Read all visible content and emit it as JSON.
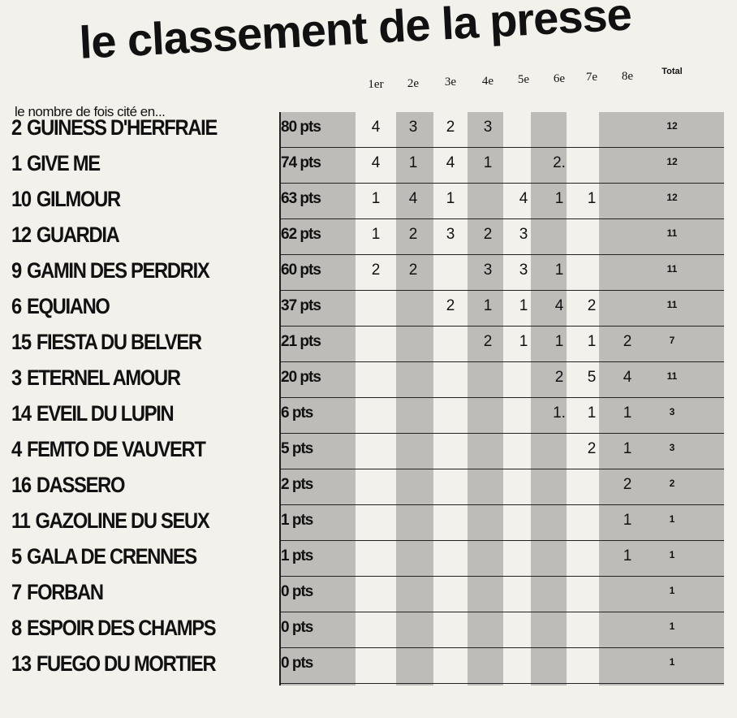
{
  "title": "le classement de la presse",
  "subtitle": "le nombre de fois cité en...",
  "columns": [
    "1er",
    "2e",
    "3e",
    "4e",
    "5e",
    "6e",
    "7e",
    "8e",
    "Total"
  ],
  "rows": [
    {
      "num": "2",
      "name": "GUINESS D'HERFRAIE",
      "pts": "80 pts",
      "cells": [
        "4",
        "3",
        "2",
        "3",
        "",
        "",
        "",
        "",
        ""
      ],
      "total": "12"
    },
    {
      "num": "1",
      "name": "GIVE ME",
      "pts": "74 pts",
      "cells": [
        "4",
        "1",
        "4",
        "1",
        "",
        "2.",
        "",
        "",
        ""
      ],
      "total": "12"
    },
    {
      "num": "10",
      "name": "GILMOUR",
      "pts": "63 pts",
      "cells": [
        "1",
        "4",
        "1",
        "",
        "4",
        "1",
        "1",
        "",
        ""
      ],
      "total": "12"
    },
    {
      "num": "12",
      "name": "GUARDIA",
      "pts": "62 pts",
      "cells": [
        "1",
        "2",
        "3",
        "2",
        "3",
        "",
        "",
        "",
        ""
      ],
      "total": "11"
    },
    {
      "num": "9",
      "name": "GAMIN DES PERDRIX",
      "pts": "60 pts",
      "cells": [
        "2",
        "2",
        "",
        "3",
        "3",
        "1",
        "",
        "",
        ""
      ],
      "total": "11"
    },
    {
      "num": "6",
      "name": "EQUIANO",
      "pts": "37 pts",
      "cells": [
        "",
        "",
        "2",
        "1",
        "1",
        "4",
        "2",
        "",
        ""
      ],
      "total": "11"
    },
    {
      "num": "15",
      "name": "FIESTA DU BELVER",
      "pts": "21 pts",
      "cells": [
        "",
        "",
        "",
        "2",
        "1",
        "1",
        "1",
        "2",
        ""
      ],
      "total": "7"
    },
    {
      "num": "3",
      "name": "ETERNEL AMOUR",
      "pts": "20 pts",
      "cells": [
        "",
        "",
        "",
        "",
        "",
        "2",
        "5",
        "4",
        ""
      ],
      "total": "11"
    },
    {
      "num": "14",
      "name": "EVEIL DU LUPIN",
      "pts": "6 pts",
      "cells": [
        "",
        "",
        "",
        "",
        "",
        "1.",
        "1",
        "1",
        ""
      ],
      "total": "3"
    },
    {
      "num": "4",
      "name": "FEMTO DE VAUVERT",
      "pts": "5 pts",
      "cells": [
        "",
        "",
        "",
        "",
        "",
        "",
        "2",
        "1",
        ""
      ],
      "total": "3"
    },
    {
      "num": "16",
      "name": "DASSERO",
      "pts": "2 pts",
      "cells": [
        "",
        "",
        "",
        "",
        "",
        "",
        "",
        "2",
        ""
      ],
      "total": "2"
    },
    {
      "num": "11",
      "name": "GAZOLINE DU SEUX",
      "pts": "1 pts",
      "cells": [
        "",
        "",
        "",
        "",
        "",
        "",
        "",
        "1",
        ""
      ],
      "total": "1"
    },
    {
      "num": "5",
      "name": "GALA DE CRENNES",
      "pts": "1 pts",
      "cells": [
        "",
        "",
        "",
        "",
        "",
        "",
        "",
        "1",
        ""
      ],
      "total": "1"
    },
    {
      "num": "7",
      "name": "FORBAN",
      "pts": "0 pts",
      "cells": [
        "",
        "",
        "",
        "",
        "",
        "",
        "",
        "",
        ""
      ],
      "total": "1"
    },
    {
      "num": "8",
      "name": "ESPOIR DES CHAMPS",
      "pts": "0 pts",
      "cells": [
        "",
        "",
        "",
        "",
        "",
        "",
        "",
        "",
        ""
      ],
      "total": "1"
    },
    {
      "num": "13",
      "name": "FUEGO DU MORTIER",
      "pts": "0 pts",
      "cells": [
        "",
        "",
        "",
        "",
        "",
        "",
        "",
        "",
        ""
      ],
      "total": "1"
    }
  ],
  "colors": {
    "band": "#bdbcb8",
    "paper": "#f3f1ec",
    "ink": "#111111"
  }
}
